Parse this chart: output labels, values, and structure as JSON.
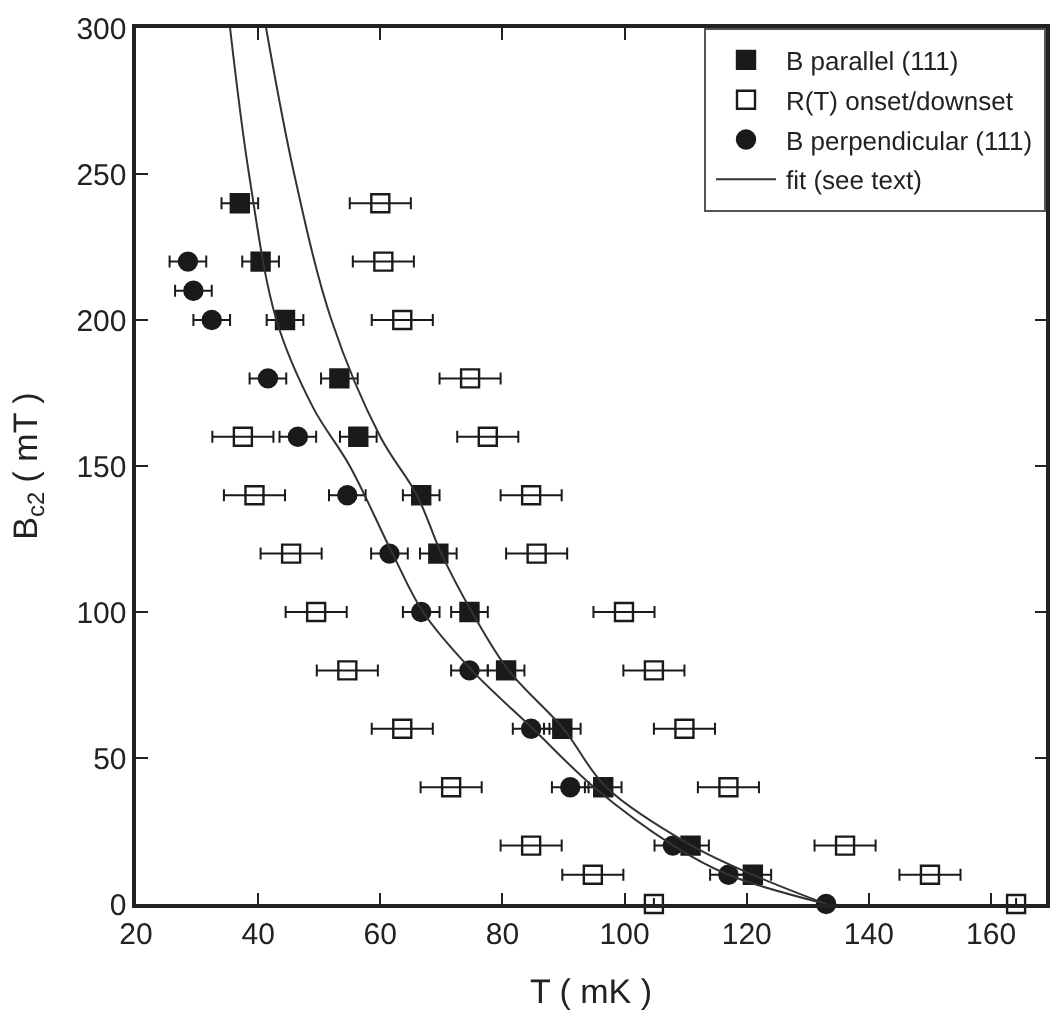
{
  "chart_data": {
    "type": "scatter",
    "xlabel": "T ( mK )",
    "ylabel": "B$_{c2}$ ( mT )",
    "xlim": [
      20,
      169
    ],
    "xticks": [
      20,
      40,
      60,
      80,
      100,
      120,
      140,
      160
    ],
    "ylim": [
      0,
      300
    ],
    "yticks": [
      0,
      50,
      100,
      150,
      200,
      250,
      300
    ],
    "legend": "top right",
    "series": [
      {
        "name": "B parallel (111)",
        "marker": "square",
        "color": "#1a1a1a",
        "x": [
          37,
          40.4,
          44.4,
          53.3,
          56.4,
          66.7,
          69.5,
          74.6,
          80.6,
          89.8,
          96.5,
          110.8,
          121
        ],
        "values": [
          240,
          220,
          200,
          180,
          160,
          140,
          120,
          100,
          80,
          60,
          40,
          20,
          10
        ],
        "xerrors": [
          3,
          3,
          3,
          3,
          3,
          3,
          3,
          3,
          3,
          3,
          3,
          3,
          3
        ]
      },
      {
        "name": "R(T) onset/downset",
        "marker": "square-open",
        "color": "#1a1a1a",
        "x": [
          60,
          60.5,
          63.6,
          74.7,
          37.5,
          77.6,
          39.4,
          84.7,
          45.4,
          85.6,
          49.5,
          99.9,
          54.6,
          104.8,
          63.6,
          109.8,
          71.6,
          117,
          84.7,
          136.1,
          94.8,
          150,
          104.8,
          164.1
        ],
        "values": [
          240,
          220,
          200,
          180,
          160,
          160,
          140,
          140,
          120,
          120,
          100,
          100,
          80,
          80,
          60,
          60,
          40,
          40,
          20,
          20,
          10,
          10,
          0,
          0
        ],
        "xerrors": [
          5,
          5,
          5,
          5,
          5,
          5,
          5,
          5,
          5,
          5,
          5,
          5,
          5,
          5,
          5,
          5,
          5,
          5,
          5,
          5,
          5,
          5,
          null,
          null
        ]
      },
      {
        "name": "B perpendicular (111)",
        "marker": "circle",
        "color": "#1a1a1a",
        "x": [
          28.5,
          29.4,
          32.4,
          41.6,
          46.5,
          54.6,
          61.5,
          66.7,
          74.6,
          84.7,
          91.1,
          107.9,
          117,
          133
        ],
        "values": [
          220,
          210,
          200,
          180,
          160,
          140,
          120,
          100,
          80,
          60,
          40,
          20,
          10,
          0
        ],
        "xerrors": [
          3,
          3,
          3,
          3,
          3,
          3,
          3,
          3,
          3,
          3,
          3,
          3,
          3,
          null
        ]
      },
      {
        "name": "fit (see text)",
        "type": "line",
        "marker": "none",
        "color": "#333333",
        "x": [
          35.4,
          38.5,
          43,
          49,
          55,
          62,
          67,
          75,
          85,
          95,
          108,
          117,
          133
        ],
        "values": [
          300,
          250,
          200,
          170,
          150,
          120,
          100,
          80,
          60,
          40,
          20,
          10,
          0
        ]
      },
      {
        "type": "line",
        "marker": "none",
        "color": "#333333",
        "x": [
          41.3,
          45.9,
          52,
          60,
          66,
          70,
          75,
          81,
          90,
          97,
          111,
          121,
          133
        ],
        "values": [
          300,
          250,
          200,
          160,
          140,
          120,
          100,
          80,
          60,
          40,
          20,
          10,
          0
        ]
      }
    ]
  }
}
